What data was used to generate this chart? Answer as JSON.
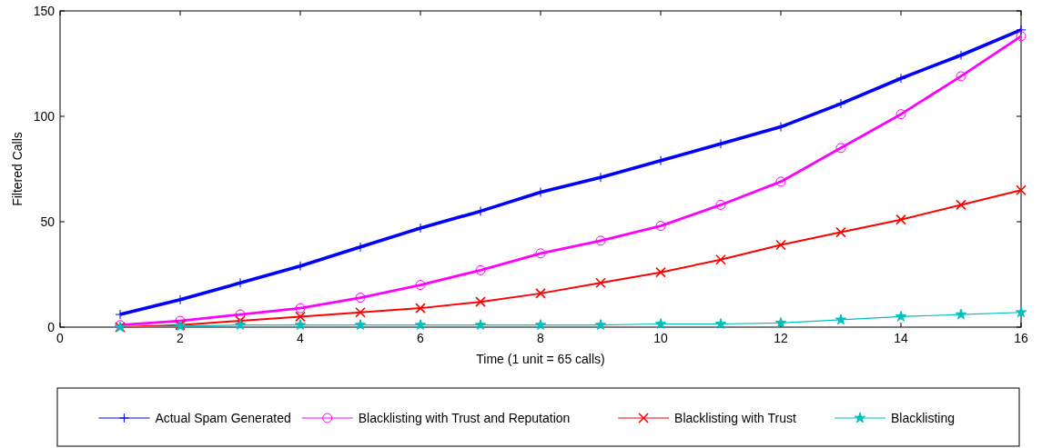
{
  "chart_data": {
    "type": "line",
    "xlabel": "Time (1 unit = 65 calls)",
    "ylabel": "Filtered Calls",
    "x": [
      1,
      2,
      3,
      4,
      5,
      6,
      7,
      8,
      9,
      10,
      11,
      12,
      13,
      14,
      15,
      16
    ],
    "series": [
      {
        "name": "Actual Spam Generated",
        "color": "#0000ff",
        "marker": "plus",
        "values": [
          6,
          13,
          21,
          29,
          38,
          47,
          55,
          64,
          71,
          79,
          87,
          95,
          106,
          118,
          129,
          141
        ]
      },
      {
        "name": "Blacklisting with Trust and Reputation",
        "color": "#ff00ff",
        "marker": "circle",
        "values": [
          1,
          3,
          6,
          9,
          14,
          20,
          27,
          35,
          41,
          48,
          58,
          69,
          85,
          101,
          119,
          138
        ]
      },
      {
        "name": "Blacklisting with Trust",
        "color": "#ff0000",
        "marker": "cross",
        "values": [
          0,
          1,
          3,
          5,
          7,
          9,
          12,
          16,
          21,
          26,
          32,
          39,
          45,
          51,
          58,
          65
        ]
      },
      {
        "name": "Blacklisting",
        "color": "#00bfbf",
        "marker": "star",
        "values": [
          0,
          0.5,
          1,
          1,
          1,
          1,
          1,
          1,
          1,
          1.5,
          1.5,
          2,
          3.5,
          5,
          6,
          7
        ]
      }
    ],
    "xlim": [
      0,
      16
    ],
    "xticks": [
      0,
      2,
      4,
      6,
      8,
      10,
      12,
      14,
      16
    ],
    "ylim": [
      0,
      150
    ],
    "yticks": [
      0,
      50,
      100,
      150
    ],
    "grid": false,
    "legend": "bottom",
    "line_style": "solid"
  }
}
